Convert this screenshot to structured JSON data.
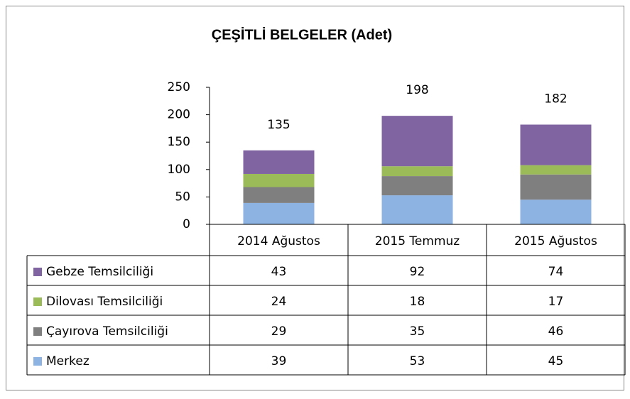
{
  "chart_data": {
    "type": "stacked_bar",
    "title": "ÇEŞİTLİ BELGELER (Adet)",
    "categories": [
      "2014 Ağustos",
      "2015 Temmuz",
      "2015 Ağustos"
    ],
    "series": [
      {
        "name": "Merkez",
        "color": "#8db3e2",
        "values": [
          39,
          53,
          45
        ]
      },
      {
        "name": "Çayırova Temsilciliği",
        "color": "#7f7f7f",
        "values": [
          29,
          35,
          46
        ]
      },
      {
        "name": "Dilovası Temsilciliği",
        "color": "#9bbb59",
        "values": [
          24,
          18,
          17
        ]
      },
      {
        "name": "Gebze Temsilciliği",
        "color": "#8064a2",
        "values": [
          43,
          92,
          74
        ]
      }
    ],
    "totals": [
      135,
      198,
      182
    ],
    "ylim": [
      0,
      250
    ],
    "yticks": [
      0,
      50,
      100,
      150,
      200,
      250
    ],
    "grid": false
  }
}
